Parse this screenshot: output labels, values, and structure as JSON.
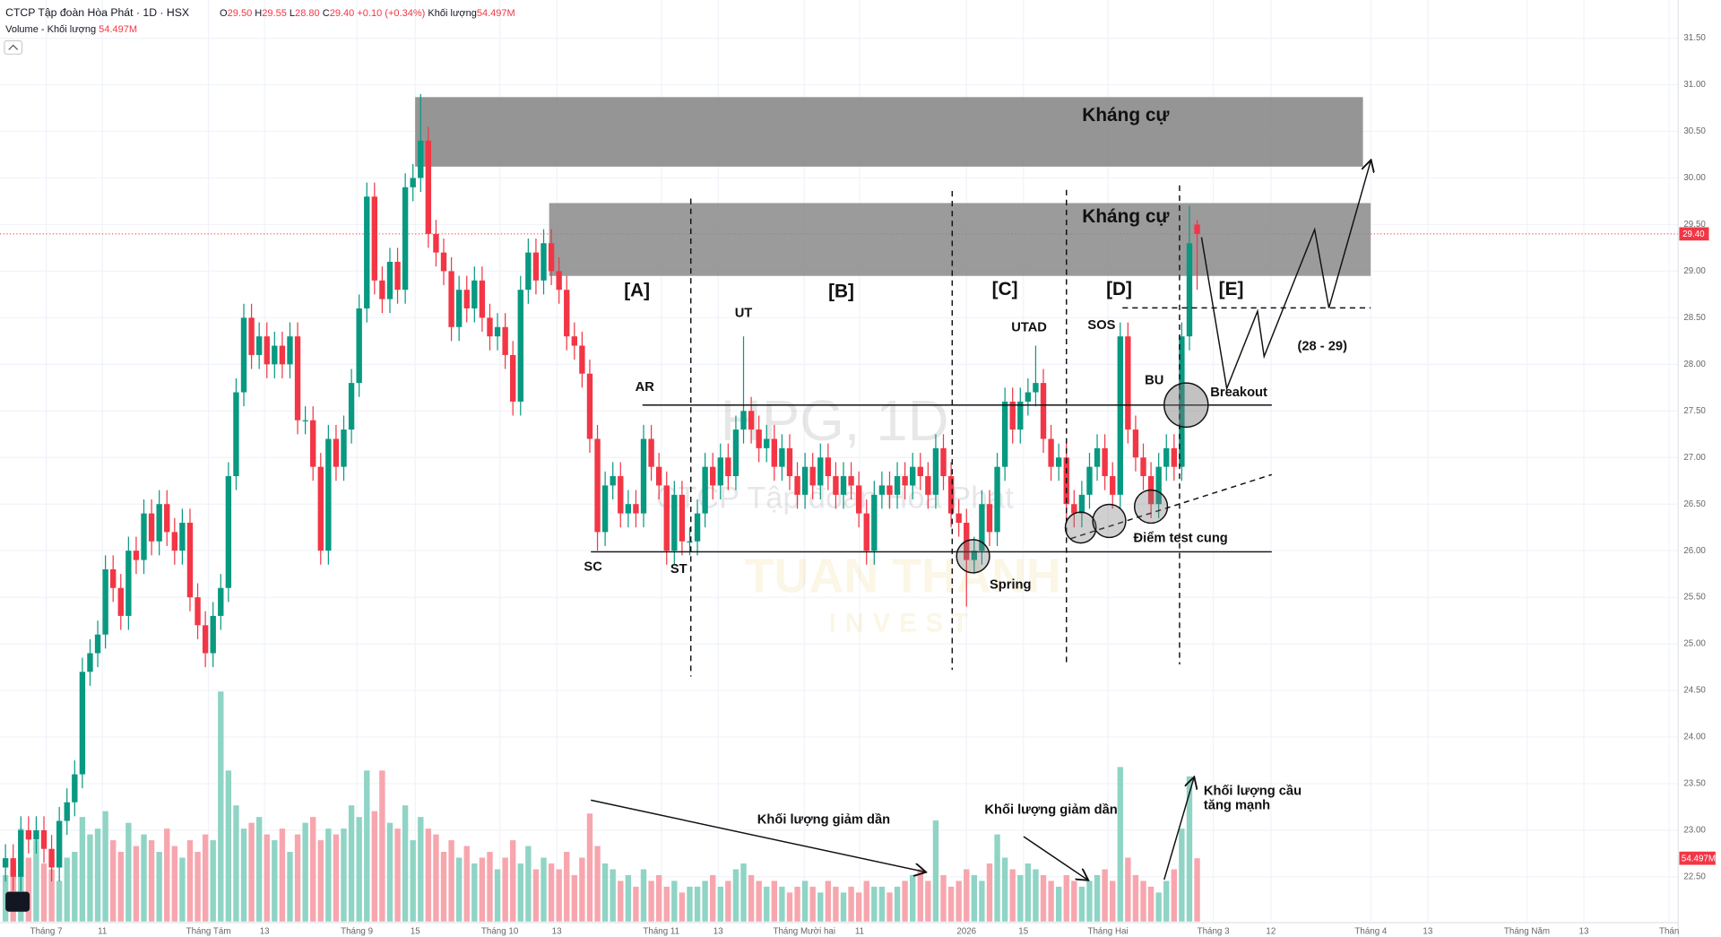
{
  "chart_data": {
    "type": "candlestick",
    "title": "CTCP Tập đoàn Hòa Phát · 1D · HSX",
    "ohlc_legend": [
      {
        "key": "O",
        "value": "29.50"
      },
      {
        "key": "H",
        "value": "29.55"
      },
      {
        "key": "L",
        "value": "28.80"
      },
      {
        "key": "C",
        "value": "29.40"
      }
    ],
    "change": "+0.10 (+0.34%)",
    "volume_legend": {
      "label": "Khối lượng",
      "value": "54.497M"
    },
    "volume_title": "Volume - Khối lượng",
    "up_color": "#089981",
    "down_color": "#f23645",
    "volume_up_color": "#8fd4c5",
    "volume_down_color": "#f7a6ae",
    "grid": true,
    "xlim": [
      -0.714,
      217.57
    ],
    "ylim": [
      22.02,
      31.91
    ],
    "volume_lim": [
      0,
      190
    ],
    "yticks": [
      {
        "value": 22.5,
        "label": "22.50"
      },
      {
        "value": 23,
        "label": "23.00"
      },
      {
        "value": 23.5,
        "label": "23.50"
      },
      {
        "value": 24,
        "label": "24.00"
      },
      {
        "value": 24.5,
        "label": "24.50"
      },
      {
        "value": 25,
        "label": "25.00"
      },
      {
        "value": 25.5,
        "label": "25.50"
      },
      {
        "value": 26,
        "label": "26.00"
      },
      {
        "value": 26.5,
        "label": "26.50"
      },
      {
        "value": 27,
        "label": "27.00"
      },
      {
        "value": 27.5,
        "label": "27.50"
      },
      {
        "value": 28,
        "label": "28.00"
      },
      {
        "value": 28.5,
        "label": "28.50"
      },
      {
        "value": 29,
        "label": "29.00"
      },
      {
        "value": 29.5,
        "label": "29.50"
      },
      {
        "value": 30,
        "label": "30.00"
      },
      {
        "value": 30.5,
        "label": "30.50"
      },
      {
        "value": 31,
        "label": "31.00"
      },
      {
        "value": 31.5,
        "label": "31.50"
      }
    ],
    "xticks": [
      {
        "value": 5.3,
        "label": "Tháng 7"
      },
      {
        "value": 12.6,
        "label": "11"
      },
      {
        "value": 26.4,
        "label": "Tháng Tám"
      },
      {
        "value": 33.7,
        "label": "13"
      },
      {
        "value": 45.7,
        "label": "Tháng 9"
      },
      {
        "value": 53.3,
        "label": "15"
      },
      {
        "value": 64.3,
        "label": "Tháng 10"
      },
      {
        "value": 71.7,
        "label": "13"
      },
      {
        "value": 85.3,
        "label": "Tháng 11"
      },
      {
        "value": 92.7,
        "label": "13"
      },
      {
        "value": 103.9,
        "label": "Tháng Mười hai"
      },
      {
        "value": 111.1,
        "label": "11"
      },
      {
        "value": 125,
        "label": "2026"
      },
      {
        "value": 132.4,
        "label": "15"
      },
      {
        "value": 143.4,
        "label": "Tháng Hai"
      },
      {
        "value": 157.1,
        "label": "Tháng 3"
      },
      {
        "value": 164.6,
        "label": "12"
      },
      {
        "value": 177.6,
        "label": "Tháng 4"
      },
      {
        "value": 185,
        "label": "13"
      },
      {
        "value": 197.9,
        "label": "Tháng Năm"
      },
      {
        "value": 205.3,
        "label": "13"
      },
      {
        "value": 216.4,
        "label": "Thán"
      }
    ],
    "open": [
      22.6,
      22.7,
      22.5,
      23.0,
      22.9,
      23.0,
      22.8,
      22.6,
      23.1,
      23.3,
      23.6,
      24.7,
      24.9,
      25.1,
      25.8,
      25.6,
      25.3,
      26.0,
      25.9,
      26.4,
      26.1,
      26.5,
      26.2,
      26.0,
      26.3,
      25.5,
      25.2,
      24.9,
      25.3,
      25.6,
      26.8,
      27.7,
      28.5,
      28.1,
      28.3,
      28.0,
      28.2,
      28.0,
      28.3,
      27.4,
      27.4,
      26.9,
      26.0,
      27.2,
      26.9,
      27.3,
      27.8,
      28.6,
      29.8,
      28.9,
      28.7,
      29.1,
      28.8,
      29.9,
      30.0,
      30.4,
      29.4,
      29.2,
      29.0,
      28.4,
      28.8,
      28.6,
      28.9,
      28.5,
      28.3,
      28.4,
      28.1,
      27.6,
      28.8,
      29.2,
      28.9,
      29.3,
      29.0,
      28.8,
      28.3,
      28.2,
      27.9,
      27.2,
      26.2,
      26.7,
      26.8,
      26.4,
      26.5,
      26.4,
      27.2,
      26.9,
      26.7,
      26.0,
      26.6,
      26.1,
      26.1,
      26.4,
      26.9,
      26.7,
      27.0,
      26.8,
      27.3,
      27.5,
      27.3,
      27.1,
      27.2,
      26.9,
      27.1,
      26.8,
      26.6,
      26.9,
      26.7,
      27.0,
      26.8,
      26.6,
      26.8,
      26.7,
      26.4,
      26.0,
      26.6,
      26.7,
      26.6,
      26.8,
      26.7,
      26.9,
      26.8,
      26.6,
      27.1,
      26.8,
      26.4,
      26.3,
      25.9,
      26.0,
      26.5,
      26.2,
      26.9,
      27.6,
      27.3,
      27.6,
      27.7,
      27.8,
      27.2,
      26.9,
      27.0,
      26.5,
      26.4,
      26.6,
      26.9,
      27.1,
      26.8,
      26.6,
      28.3,
      27.3,
      27.0,
      26.8,
      26.5,
      26.9,
      27.1,
      26.9,
      28.3,
      29.5
    ],
    "high": [
      22.85,
      22.85,
      23.15,
      23.15,
      23.15,
      23.15,
      22.95,
      23.25,
      23.45,
      23.75,
      24.85,
      25.05,
      25.25,
      25.95,
      25.95,
      25.75,
      26.15,
      26.15,
      26.55,
      26.55,
      26.65,
      26.65,
      26.35,
      26.45,
      26.45,
      25.65,
      25.35,
      25.45,
      25.75,
      26.95,
      27.85,
      28.65,
      28.65,
      28.45,
      28.45,
      28.35,
      28.35,
      28.45,
      28.45,
      27.55,
      27.55,
      27.05,
      27.35,
      27.35,
      27.45,
      27.95,
      28.75,
      29.95,
      29.95,
      29.05,
      29.25,
      29.25,
      30.05,
      30.15,
      30.9,
      30.55,
      29.55,
      29.35,
      29.15,
      28.95,
      28.95,
      29.05,
      29.05,
      28.65,
      28.55,
      28.55,
      28.25,
      28.95,
      29.35,
      29.35,
      29.45,
      29.45,
      29.15,
      28.95,
      28.45,
      28.35,
      28.05,
      27.35,
      26.85,
      26.95,
      26.95,
      26.65,
      26.65,
      27.35,
      27.35,
      27.05,
      26.85,
      26.75,
      26.75,
      26.25,
      26.55,
      27.05,
      27.05,
      27.15,
      27.15,
      27.45,
      28.3,
      27.65,
      27.45,
      27.35,
      27.35,
      27.25,
      27.25,
      26.95,
      27.05,
      27.05,
      27.15,
      27.15,
      26.95,
      26.95,
      26.95,
      26.85,
      26.55,
      26.75,
      26.85,
      26.85,
      26.95,
      26.95,
      27.05,
      27.05,
      26.95,
      27.25,
      27.25,
      26.95,
      26.55,
      26.45,
      26.15,
      26.65,
      26.65,
      27.05,
      27.75,
      27.75,
      27.75,
      27.85,
      28.2,
      27.95,
      27.35,
      27.15,
      27.15,
      26.65,
      26.75,
      27.05,
      27.25,
      27.25,
      26.95,
      28.45,
      28.45,
      27.45,
      27.15,
      26.95,
      27.05,
      27.25,
      27.25,
      28.45,
      29.7,
      29.55
    ],
    "low": [
      22.45,
      22.35,
      22.35,
      22.75,
      22.75,
      22.65,
      22.45,
      22.45,
      22.95,
      23.15,
      23.45,
      24.55,
      24.75,
      24.95,
      25.45,
      25.15,
      25.15,
      25.75,
      25.75,
      25.95,
      25.95,
      26.05,
      25.85,
      25.85,
      25.35,
      25.05,
      24.75,
      24.75,
      25.15,
      25.45,
      26.65,
      27.55,
      27.95,
      27.95,
      27.85,
      27.85,
      27.85,
      27.85,
      27.25,
      27.25,
      26.75,
      25.85,
      25.85,
      26.75,
      26.75,
      27.15,
      27.65,
      28.45,
      28.75,
      28.55,
      28.55,
      28.65,
      28.65,
      29.75,
      29.85,
      29.25,
      29.05,
      28.85,
      28.25,
      28.25,
      28.45,
      28.45,
      28.35,
      28.15,
      28.15,
      27.95,
      27.45,
      27.45,
      28.65,
      28.75,
      28.75,
      28.85,
      28.65,
      28.15,
      28.05,
      27.75,
      27.05,
      26.0,
      26.05,
      26.55,
      26.25,
      26.25,
      26.25,
      26.25,
      26.75,
      26.55,
      25.85,
      25.85,
      25.95,
      25.95,
      25.95,
      26.25,
      26.55,
      26.55,
      26.65,
      26.65,
      27.15,
      27.15,
      26.95,
      26.95,
      26.75,
      26.75,
      26.65,
      26.45,
      26.45,
      26.55,
      26.55,
      26.65,
      26.45,
      26.45,
      26.55,
      26.25,
      25.85,
      25.85,
      26.45,
      26.45,
      26.45,
      26.55,
      26.55,
      26.65,
      26.45,
      26.45,
      26.65,
      26.25,
      26.15,
      25.4,
      25.75,
      25.85,
      26.05,
      26.05,
      26.75,
      27.15,
      27.15,
      27.45,
      27.55,
      27.05,
      26.75,
      26.75,
      26.35,
      26.25,
      26.25,
      26.45,
      26.75,
      26.65,
      26.45,
      26.45,
      27.15,
      26.85,
      26.65,
      26.35,
      26.35,
      26.75,
      26.75,
      26.75,
      28.15,
      28.8
    ],
    "close": [
      22.7,
      22.5,
      23.0,
      22.9,
      23.0,
      22.8,
      22.6,
      23.1,
      23.3,
      23.6,
      24.7,
      24.9,
      25.1,
      25.8,
      25.6,
      25.3,
      26.0,
      25.9,
      26.4,
      26.1,
      26.5,
      26.2,
      26.0,
      26.3,
      25.5,
      25.2,
      24.9,
      25.3,
      25.6,
      26.8,
      27.7,
      28.5,
      28.1,
      28.3,
      28.0,
      28.2,
      28.0,
      28.3,
      27.4,
      27.4,
      26.9,
      26.0,
      27.2,
      26.9,
      27.3,
      27.8,
      28.6,
      29.8,
      28.9,
      28.7,
      29.1,
      28.8,
      29.9,
      30.0,
      30.4,
      29.4,
      29.2,
      29.0,
      28.4,
      28.8,
      28.6,
      28.9,
      28.5,
      28.3,
      28.4,
      28.1,
      27.6,
      28.8,
      29.2,
      28.9,
      29.3,
      29.0,
      28.8,
      28.3,
      28.2,
      27.9,
      27.2,
      26.2,
      26.7,
      26.8,
      26.4,
      26.5,
      26.4,
      27.2,
      26.9,
      26.7,
      26.0,
      26.6,
      26.1,
      26.1,
      26.4,
      26.9,
      26.7,
      27.0,
      26.8,
      27.3,
      27.5,
      27.3,
      27.1,
      27.2,
      26.9,
      27.1,
      26.8,
      26.6,
      26.9,
      26.7,
      27.0,
      26.8,
      26.6,
      26.8,
      26.7,
      26.4,
      26.0,
      26.6,
      26.7,
      26.6,
      26.8,
      26.7,
      26.9,
      26.8,
      26.6,
      27.1,
      26.8,
      26.4,
      26.3,
      25.9,
      26.0,
      26.5,
      26.2,
      26.9,
      27.6,
      27.3,
      27.6,
      27.7,
      27.8,
      27.2,
      26.9,
      27.0,
      26.5,
      26.4,
      26.6,
      26.9,
      27.1,
      26.8,
      26.6,
      28.3,
      27.3,
      27.0,
      26.8,
      26.5,
      26.9,
      27.1,
      26.9,
      28.3,
      29.3,
      29.4
    ],
    "volume": [
      40,
      45,
      80,
      55,
      70,
      50,
      45,
      35,
      55,
      60,
      90,
      75,
      80,
      95,
      70,
      60,
      85,
      65,
      75,
      70,
      60,
      80,
      65,
      55,
      70,
      60,
      75,
      70,
      198,
      130,
      100,
      80,
      85,
      90,
      75,
      70,
      80,
      60,
      75,
      85,
      90,
      70,
      80,
      75,
      80,
      100,
      90,
      130,
      95,
      130,
      85,
      80,
      100,
      70,
      90,
      80,
      75,
      60,
      70,
      55,
      65,
      50,
      55,
      60,
      45,
      55,
      70,
      50,
      65,
      45,
      55,
      50,
      45,
      60,
      40,
      55,
      93,
      65,
      50,
      45,
      35,
      40,
      30,
      45,
      35,
      40,
      30,
      35,
      25,
      30,
      30,
      35,
      40,
      30,
      35,
      45,
      50,
      40,
      35,
      30,
      35,
      30,
      25,
      30,
      35,
      30,
      25,
      35,
      30,
      25,
      30,
      25,
      35,
      30,
      30,
      25,
      30,
      35,
      40,
      45,
      35,
      87,
      40,
      30,
      35,
      45,
      40,
      35,
      50,
      75,
      55,
      45,
      40,
      50,
      45,
      40,
      35,
      30,
      40,
      35,
      30,
      35,
      40,
      45,
      35,
      133,
      55,
      40,
      35,
      30,
      25,
      35,
      45,
      80,
      125,
      54.497
    ],
    "price_marker": {
      "value": 29.4,
      "label": "29.40"
    },
    "volume_marker": {
      "value": 54.497,
      "label": "54.497M"
    },
    "annotations": [
      "Kháng cự",
      "Kháng cự",
      "[A]",
      "[B]",
      "[C]",
      "[D]",
      "[E]",
      "UT",
      "AR",
      "SC",
      "ST",
      "UTAD",
      "SOS",
      "BU",
      "Spring",
      "Breakout",
      "Điểm test cung",
      "(28 - 29)",
      "Khối lượng giảm dần",
      "Khối lượng giảm dần",
      "Khối lượng cầu",
      "tăng mạnh"
    ],
    "watermark": [
      "HPG, 1D",
      "CTCP Tập đoàn Hòa Phát",
      "TUAN THANH",
      "INVEST"
    ]
  }
}
